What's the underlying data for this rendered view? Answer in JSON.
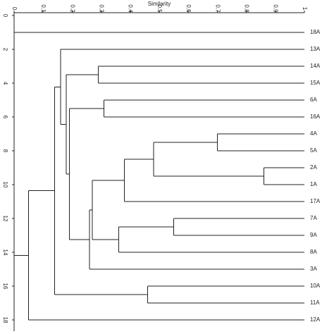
{
  "chart_data": {
    "type": "dendrogram",
    "xlabel": "Similarity",
    "xlim": [
      0,
      1
    ],
    "xticks": [
      0,
      0.1,
      0.2,
      0.3,
      0.4,
      0.5,
      0.6,
      0.7,
      0.8,
      0.9,
      1
    ],
    "ylim": [
      0,
      18.5
    ],
    "yticks": [
      0,
      2,
      4,
      6,
      8,
      10,
      12,
      14,
      16,
      18
    ],
    "color": "#222222",
    "leaves": [
      "18A",
      "13A",
      "14A",
      "15A",
      "6A",
      "16A",
      "4A",
      "5A",
      "2A",
      "1A",
      "17A",
      "7A",
      "9A",
      "8A",
      "3A",
      "10A",
      "11A",
      "12A"
    ],
    "nodes": [
      {
        "children": [
          6,
          7
        ],
        "value": 0.7
      },
      {
        "children": [
          8,
          9
        ],
        "value": 0.86
      },
      {
        "children": [
          18,
          19
        ],
        "value": 0.48
      },
      {
        "children": [
          20,
          10
        ],
        "value": 0.38
      },
      {
        "children": [
          11,
          12
        ],
        "value": 0.55
      },
      {
        "children": [
          22,
          13
        ],
        "value": 0.36
      },
      {
        "children": [
          21,
          23
        ],
        "value": 0.27
      },
      {
        "children": [
          24,
          14
        ],
        "value": 0.26
      },
      {
        "children": [
          4,
          5
        ],
        "value": 0.31
      },
      {
        "children": [
          26,
          25
        ],
        "value": 0.19
      },
      {
        "children": [
          2,
          3
        ],
        "value": 0.29
      },
      {
        "children": [
          28,
          27
        ],
        "value": 0.18
      },
      {
        "children": [
          1,
          29
        ],
        "value": 0.16
      },
      {
        "children": [
          15,
          16
        ],
        "value": 0.46
      },
      {
        "children": [
          30,
          31
        ],
        "value": 0.14
      },
      {
        "children": [
          32,
          17
        ],
        "value": 0.05
      },
      {
        "children": [
          0,
          33
        ],
        "value": 0
      }
    ]
  }
}
